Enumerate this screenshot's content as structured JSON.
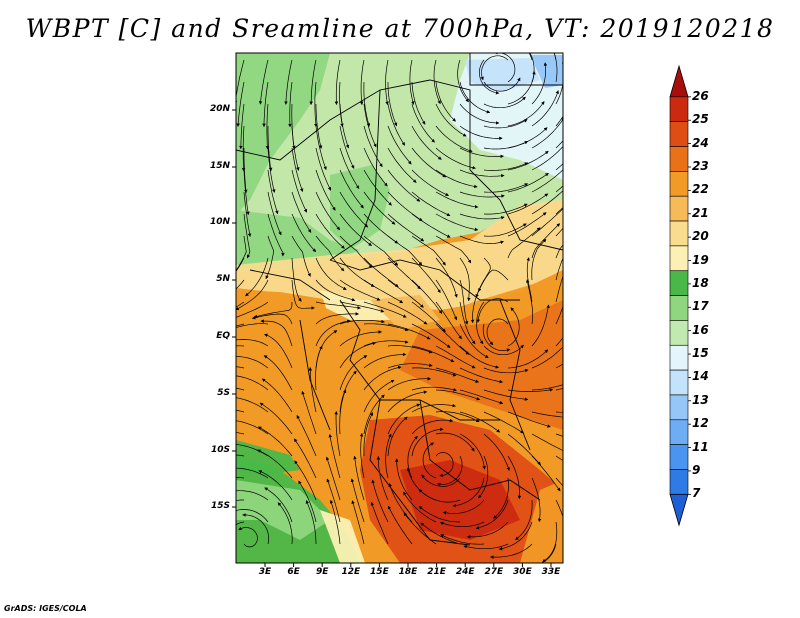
{
  "title": "WBPT [C] and Sreamline at 700hPa, VT: 2019120218",
  "footer": "GrADS: IGES/COLA",
  "axes": {
    "lat_labels": [
      "20N",
      "15N",
      "10N",
      "5N",
      "EQ",
      "5S",
      "10S",
      "15S"
    ],
    "lon_labels": [
      "3E",
      "6E",
      "9E",
      "12E",
      "15E",
      "18E",
      "21E",
      "24E",
      "27E",
      "30E",
      "33E"
    ]
  },
  "colorbar": {
    "labels": [
      "7",
      "9",
      "11",
      "12",
      "13",
      "14",
      "15",
      "16",
      "17",
      "18",
      "19",
      "20",
      "21",
      "22",
      "23",
      "24",
      "25",
      "26"
    ],
    "colors": [
      "#1e5fd6",
      "#2f7be6",
      "#4a95f0",
      "#6eacf4",
      "#95c6f8",
      "#c3e2fb",
      "#e4f5fb",
      "#c0eab0",
      "#8fd67e",
      "#49b848",
      "#fbf1b4",
      "#f9dc8e",
      "#f6bb58",
      "#f19a26",
      "#e97218",
      "#de4e14",
      "#cc2a10",
      "#a80e0c"
    ]
  },
  "regions": [
    {
      "name": "south-atlantic-green",
      "color": "#49b848"
    },
    {
      "name": "sahara-cool",
      "color": "#c0eab0"
    },
    {
      "name": "central-africa-warm",
      "color": "#f19a26"
    },
    {
      "name": "southern-africa-hot",
      "color": "#de4e14"
    }
  ]
}
